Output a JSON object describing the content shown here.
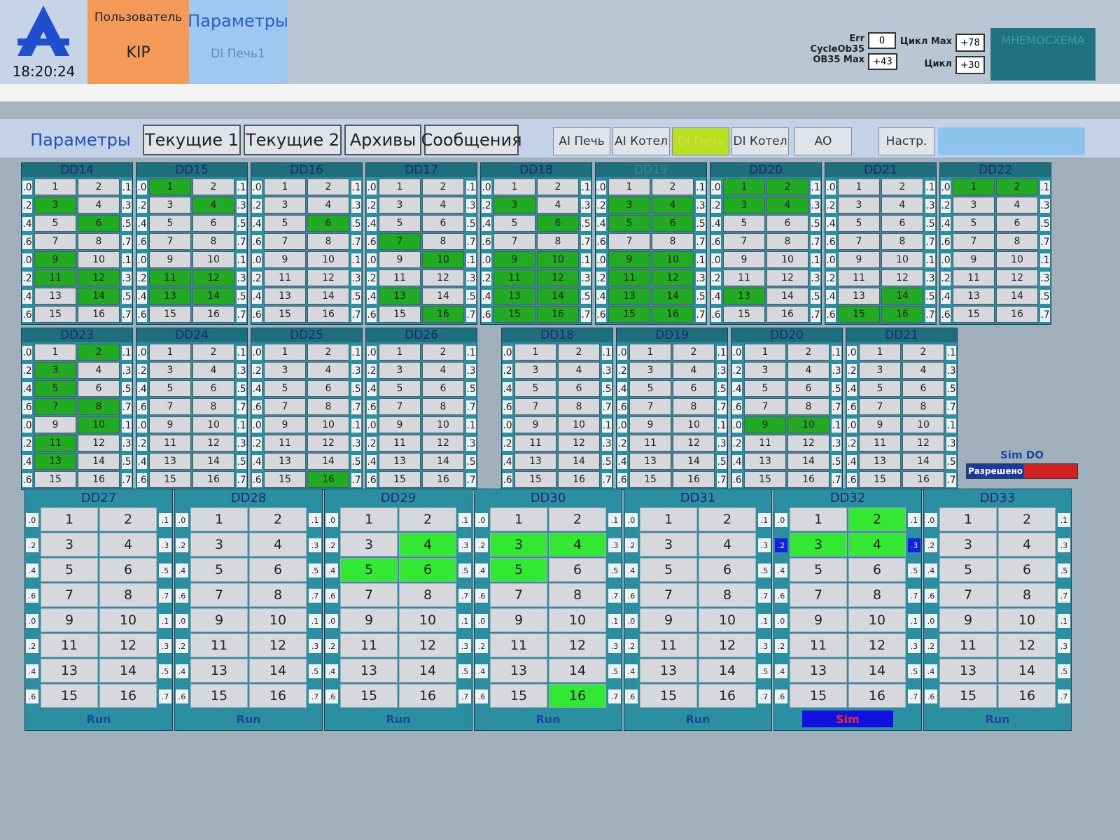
{
  "header": {
    "time": "18:20:24",
    "user_label": "Пользователь",
    "user": "KIP",
    "screen": "Параметры",
    "subscreen": "DI Печь1",
    "err_cycle_label": "Err CycleOb35",
    "err_cycle": "0",
    "cycle_max_label": "Цикл Max",
    "cycle_max": "+78",
    "ob35_max_label": "OB35 Max",
    "ob35_max": "+43",
    "cycle_label": "Цикл",
    "cycle": "+30",
    "mnemo": "МНЕМОСХЕМА"
  },
  "tabs": [
    "Параметры",
    "Текущие 1",
    "Текущие 2",
    "Архивы",
    "Сообщения"
  ],
  "active_tab": 0,
  "subtabs": [
    "AI Печь",
    "AI Котел",
    "DI Печь",
    "DI Котел",
    "AO",
    "Настр."
  ],
  "active_subtab": 2,
  "cell_labels": [
    "1",
    "2",
    "3",
    "4",
    "5",
    "6",
    "7",
    "8",
    "9",
    "10",
    "11",
    "12",
    "13",
    "14",
    "15",
    "16"
  ],
  "bits_left": [
    ".0",
    ".2",
    ".4",
    ".6",
    ".0",
    ".2",
    ".4",
    ".6"
  ],
  "bits_right": [
    ".1",
    ".3",
    ".5",
    ".7",
    ".1",
    ".3",
    ".5",
    ".7"
  ],
  "small_rows": [
    [
      {
        "name": "DD14",
        "green": [
          2,
          5,
          8,
          10,
          11,
          13
        ]
      },
      {
        "name": "DD15",
        "green": [
          0,
          3,
          10,
          11,
          12,
          13
        ]
      },
      {
        "name": "DD16",
        "green": [
          5
        ]
      },
      {
        "name": "DD17",
        "green": [
          6,
          9,
          12,
          15
        ]
      },
      {
        "name": "DD18",
        "green": [
          2,
          5,
          8,
          9,
          10,
          11,
          12,
          13,
          14,
          15
        ]
      },
      {
        "name": "DD19",
        "green": [
          2,
          3,
          4,
          5,
          8,
          9,
          10,
          11,
          12,
          13,
          14,
          15
        ],
        "dim": true
      },
      {
        "name": "DD20",
        "green": [
          0,
          1,
          2,
          3,
          12
        ]
      },
      {
        "name": "DD21",
        "green": [
          13,
          14,
          15
        ]
      },
      {
        "name": "DD22",
        "green": [
          0,
          1
        ]
      }
    ],
    [
      {
        "name": "DD23",
        "green": [
          1,
          2,
          4,
          6,
          7,
          9,
          10,
          12
        ]
      },
      {
        "name": "DD24",
        "green": []
      },
      {
        "name": "DD25",
        "green": [
          15
        ]
      },
      {
        "name": "DD26",
        "green": []
      },
      {
        "name": "DD18",
        "green": []
      },
      {
        "name": "DD19",
        "green": []
      },
      {
        "name": "DD20",
        "green": [
          8,
          9
        ]
      },
      {
        "name": "DD21",
        "green": []
      }
    ]
  ],
  "big_modules": [
    {
      "name": "DD27",
      "green": [],
      "status": "Run"
    },
    {
      "name": "DD28",
      "green": [],
      "status": "Run"
    },
    {
      "name": "DD29",
      "green": [
        3,
        4,
        5
      ],
      "status": "Run"
    },
    {
      "name": "DD30",
      "green": [
        2,
        3,
        4,
        15
      ],
      "status": "Run"
    },
    {
      "name": "DD31",
      "green": [],
      "status": "Run"
    },
    {
      "name": "DD32",
      "green": [
        1,
        2,
        3
      ],
      "status": "Sim",
      "sim": true,
      "highlight_bits_row": 1
    },
    {
      "name": "DD33",
      "green": [],
      "status": "Run"
    }
  ],
  "sim_do": {
    "label": "Sim DO",
    "state": "Разрешено"
  }
}
